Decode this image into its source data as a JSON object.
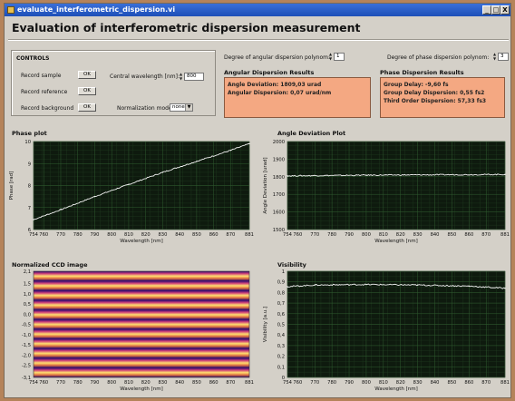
{
  "window": {
    "title": "evaluate_interferometric_dispersion.vi",
    "min_glyph": "_",
    "max_glyph": "□",
    "close_glyph": "X"
  },
  "main_title": "Evaluation of interferometric dispersion measurement",
  "controls": {
    "heading": "CONTROLS",
    "record_sample": "Record sample",
    "record_reference": "Record reference",
    "record_background": "Record background",
    "ok": "OK",
    "central_wavelength_label": "Central wavelength [nm]:",
    "central_wavelength_value": "800",
    "normalization_label": "Normalization mode",
    "normalization_value": "none"
  },
  "angular": {
    "degree_label": "Degree of angular dispersion polynom:",
    "degree_value": "1",
    "results_title": "Angular Dispersion Results",
    "line1": "Angle Deviation: 1809,03 urad",
    "line2": "Angular Dispersion: 0,07 urad/nm"
  },
  "phase": {
    "degree_label": "Degree of phase dispersion polynom:",
    "degree_value": "3",
    "results_title": "Phase Dispersion Results",
    "line1": "Group Delay: -9,60 fs",
    "line2": "Group Delay Dispersion: 0,55 fs2",
    "line3": "Third Order Dispersion: 57,33 fs3"
  },
  "colors": {
    "plot_bg": "#0e1a0e",
    "grid": "#2f5a2f",
    "trace": "#f2f2f2",
    "panel": "#d4d0c8",
    "results": "#f4a882"
  },
  "chart_data": [
    {
      "type": "line",
      "title": "Phase plot",
      "xlabel": "Wavelength [nm]",
      "ylabel": "Phase [rad]",
      "xlim": [
        754,
        881
      ],
      "ylim": [
        6,
        10
      ],
      "xticks": [
        "754",
        "760",
        "770",
        "780",
        "790",
        "800",
        "810",
        "820",
        "830",
        "840",
        "850",
        "860",
        "870",
        "881"
      ],
      "xtick_values": [
        754,
        760,
        770,
        780,
        790,
        800,
        810,
        820,
        830,
        840,
        850,
        860,
        870,
        881
      ],
      "yticks": [
        "6",
        "7",
        "8",
        "9",
        "10"
      ],
      "ytick_values": [
        6,
        7,
        8,
        9,
        10
      ],
      "grid": true,
      "series": [
        {
          "x": [
            754,
            770,
            790,
            810,
            830,
            850,
            870,
            881
          ],
          "y": [
            6.45,
            6.9,
            7.5,
            8.05,
            8.6,
            9.1,
            9.6,
            9.9
          ]
        }
      ]
    },
    {
      "type": "line",
      "title": "Angle Deviation Plot",
      "xlabel": "Wavelength [nm]",
      "ylabel": "Angle Deviation [urad]",
      "xlim": [
        754,
        881
      ],
      "ylim": [
        1500,
        2000
      ],
      "xticks": [
        "754",
        "760",
        "770",
        "780",
        "790",
        "800",
        "810",
        "820",
        "830",
        "840",
        "850",
        "860",
        "870",
        "881"
      ],
      "xtick_values": [
        754,
        760,
        770,
        780,
        790,
        800,
        810,
        820,
        830,
        840,
        850,
        860,
        870,
        881
      ],
      "yticks": [
        "1500",
        "1600",
        "1700",
        "1800",
        "1900",
        "2000"
      ],
      "ytick_values": [
        1500,
        1600,
        1700,
        1800,
        1900,
        2000
      ],
      "grid": true,
      "series": [
        {
          "x": [
            754,
            800,
            881
          ],
          "y": [
            1805,
            1809,
            1813
          ]
        }
      ]
    },
    {
      "type": "heatmap",
      "title": "Normalized CCD image",
      "xlabel": "Wavelength [nm]",
      "ylabel": "",
      "xlim": [
        754,
        881
      ],
      "ylim": [
        -3.1,
        2.1
      ],
      "xticks": [
        "754",
        "760",
        "770",
        "780",
        "790",
        "800",
        "810",
        "820",
        "830",
        "840",
        "850",
        "860",
        "870",
        "881"
      ],
      "xtick_values": [
        754,
        760,
        770,
        780,
        790,
        800,
        810,
        820,
        830,
        840,
        850,
        860,
        870,
        881
      ],
      "yticks": [
        "2,1",
        "1,5",
        "1,0",
        "0,5",
        "0,0",
        "-0,5",
        "-1,0",
        "-1,5",
        "-2,0",
        "-2,5",
        "-3,1"
      ],
      "ytick_values": [
        2.1,
        1.5,
        1.0,
        0.5,
        0.0,
        -0.5,
        -1.0,
        -1.5,
        -2.0,
        -2.5,
        -3.1
      ],
      "fringe_count": 5.5
    },
    {
      "type": "line",
      "title": "Visibility",
      "xlabel": "Wavelength [nm]",
      "ylabel": "Visibility [a.u.]",
      "xlim": [
        754,
        881
      ],
      "ylim": [
        0,
        1
      ],
      "xticks": [
        "754",
        "760",
        "770",
        "780",
        "790",
        "800",
        "810",
        "820",
        "830",
        "840",
        "850",
        "860",
        "870",
        "881"
      ],
      "xtick_values": [
        754,
        760,
        770,
        780,
        790,
        800,
        810,
        820,
        830,
        840,
        850,
        860,
        870,
        881
      ],
      "yticks": [
        "0",
        "0,1",
        "0,2",
        "0,3",
        "0,4",
        "0,5",
        "0,6",
        "0,7",
        "0,8",
        "0,9",
        "1"
      ],
      "ytick_values": [
        0,
        0.1,
        0.2,
        0.3,
        0.4,
        0.5,
        0.6,
        0.7,
        0.8,
        0.9,
        1
      ],
      "grid": true,
      "series": [
        {
          "x": [
            754,
            770,
            800,
            830,
            860,
            881
          ],
          "y": [
            0.855,
            0.87,
            0.875,
            0.87,
            0.86,
            0.84
          ]
        }
      ]
    }
  ]
}
